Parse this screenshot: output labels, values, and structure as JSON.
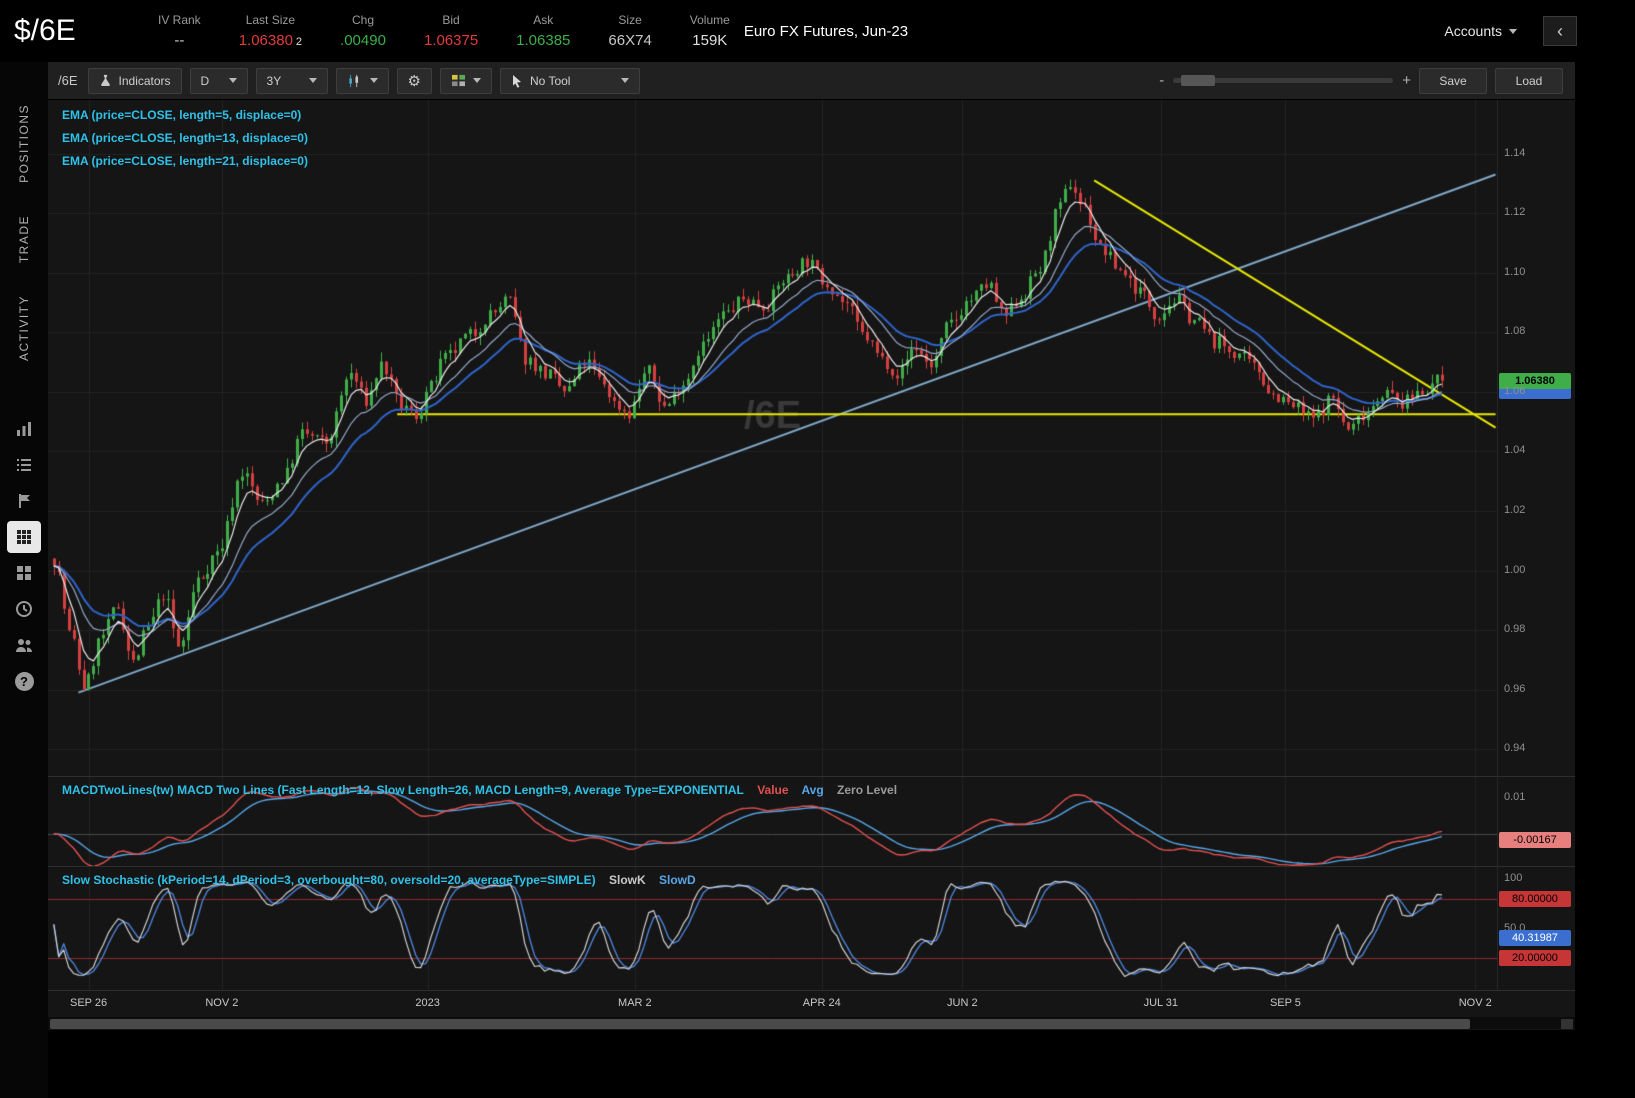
{
  "header": {
    "symbol": "$/6E",
    "instrument_title": "Euro FX Futures, Jun-23",
    "accounts_label": "Accounts",
    "fields": [
      {
        "label": "IV Rank",
        "value": "--",
        "color": "#cccccc"
      },
      {
        "label": "Last Size",
        "value": "1.06380",
        "suffix": "2",
        "color": "#e03c3c"
      },
      {
        "label": "Chg",
        "value": ".00490",
        "color": "#3dae4b"
      },
      {
        "label": "Bid",
        "value": "1.06375",
        "color": "#e03c3c"
      },
      {
        "label": "Ask",
        "value": "1.06385",
        "color": "#3dae4b"
      },
      {
        "label": "Size",
        "value": "66X74",
        "color": "#c8c8c8"
      },
      {
        "label": "Volume",
        "value": "159K",
        "color": "#e0e0e0"
      }
    ]
  },
  "icons": {
    "gear": "⚙",
    "collapse_left": "‹",
    "help": "?"
  },
  "sidebar": {
    "tabs": [
      {
        "id": "positions",
        "label": "POSITIONS"
      },
      {
        "id": "trade",
        "label": "TRADE"
      },
      {
        "id": "activity",
        "label": "ACTIVITY"
      }
    ],
    "gadget_icons": [
      "bar-chart-icon",
      "list-icon",
      "flag-icon",
      "grid-icon",
      "tiles-icon",
      "clock-icon",
      "people-icon",
      "question-icon"
    ]
  },
  "toolbar": {
    "symbol_label": "/6E",
    "indicators_label": "Indicators",
    "timeframe_value": "D",
    "range_value": "3Y",
    "tool_value": "No Tool",
    "zoom_minus": "-",
    "zoom_plus": "+",
    "save_label": "Save",
    "load_label": "Load"
  },
  "main_panel": {
    "legend": [
      "EMA (price=CLOSE, length=5, displace=0)",
      "EMA (price=CLOSE, length=13, displace=0)",
      "EMA (price=CLOSE, length=21, displace=0)"
    ],
    "watermark": "/6E",
    "axis_ticks": [
      "1.14",
      "1.12",
      "1.10",
      "1.08",
      "1.06",
      "1.04",
      "1.02",
      "1.00",
      "0.98",
      "0.96",
      "0.94"
    ],
    "last_price_label": "1.06380"
  },
  "macd_panel": {
    "legend_main": "MACDTwoLines(tw) MACD Two Lines (Fast Length=12, Slow Length=26, MACD Length=9, Average Type=EXPONENTIAL",
    "legend_value": "Value",
    "legend_avg": "Avg",
    "legend_zero": "Zero Level",
    "axis_tick": "0.01",
    "value_label": "-0.00167"
  },
  "stoch_panel": {
    "legend_main": "Slow Stochastic (kPeriod=14, dPeriod=3, overbought=80, oversold=20, averageType=SIMPLE)",
    "legend_slowk": "SlowK",
    "legend_slowd": "SlowD",
    "axis_ticks": [
      {
        "label": "100",
        "value": 100,
        "style": "plain"
      },
      {
        "label": "80.00000",
        "value": 80,
        "style": "red"
      },
      {
        "label": "50.0",
        "value": 50,
        "style": "plain"
      },
      {
        "label": "40.31987",
        "value": 40.31987,
        "style": "blue"
      },
      {
        "label": "20.00000",
        "value": 20,
        "style": "red"
      }
    ]
  },
  "time_axis": {
    "ticks": [
      {
        "label": "SEP 26",
        "t": 0.028
      },
      {
        "label": "NOV 2",
        "t": 0.12
      },
      {
        "label": "2023",
        "t": 0.262
      },
      {
        "label": "MAR 2",
        "t": 0.405
      },
      {
        "label": "APR 24",
        "t": 0.534
      },
      {
        "label": "JUN 2",
        "t": 0.631
      },
      {
        "label": "JUL 31",
        "t": 0.768
      },
      {
        "label": "SEP 5",
        "t": 0.854
      },
      {
        "label": "NOV 2",
        "t": 0.985
      }
    ]
  },
  "chart_data": {
    "type": "candlestick",
    "symbol": "/6E",
    "title": "Euro FX Futures, Jun-23",
    "timeframe": "D",
    "range": "3Y",
    "last_price": 1.0638,
    "price_axis_range": [
      0.931,
      1.158
    ],
    "price_gridlines": [
      1.14,
      1.12,
      1.1,
      1.08,
      1.06,
      1.04,
      1.02,
      1.0,
      0.98,
      0.96,
      0.94
    ],
    "num_candles": 281,
    "seed": 7,
    "price_path_anchors": [
      [
        0.0,
        1.004
      ],
      [
        0.012,
        0.978
      ],
      [
        0.022,
        0.961
      ],
      [
        0.035,
        0.978
      ],
      [
        0.046,
        0.988
      ],
      [
        0.057,
        0.969
      ],
      [
        0.068,
        0.981
      ],
      [
        0.079,
        0.992
      ],
      [
        0.09,
        0.974
      ],
      [
        0.104,
        0.997
      ],
      [
        0.118,
        1.006
      ],
      [
        0.136,
        1.033
      ],
      [
        0.15,
        1.022
      ],
      [
        0.165,
        1.031
      ],
      [
        0.179,
        1.046
      ],
      [
        0.196,
        1.043
      ],
      [
        0.214,
        1.066
      ],
      [
        0.225,
        1.057
      ],
      [
        0.236,
        1.069
      ],
      [
        0.25,
        1.055
      ],
      [
        0.261,
        1.052
      ],
      [
        0.27,
        1.061
      ],
      [
        0.282,
        1.071
      ],
      [
        0.3,
        1.079
      ],
      [
        0.315,
        1.086
      ],
      [
        0.327,
        1.091
      ],
      [
        0.34,
        1.071
      ],
      [
        0.355,
        1.066
      ],
      [
        0.369,
        1.06
      ],
      [
        0.383,
        1.07
      ],
      [
        0.396,
        1.063
      ],
      [
        0.404,
        1.056
      ],
      [
        0.414,
        1.053
      ],
      [
        0.427,
        1.067
      ],
      [
        0.44,
        1.055
      ],
      [
        0.453,
        1.063
      ],
      [
        0.468,
        1.076
      ],
      [
        0.483,
        1.086
      ],
      [
        0.497,
        1.091
      ],
      [
        0.512,
        1.089
      ],
      [
        0.527,
        1.098
      ],
      [
        0.542,
        1.104
      ],
      [
        0.556,
        1.097
      ],
      [
        0.57,
        1.09
      ],
      [
        0.583,
        1.079
      ],
      [
        0.597,
        1.071
      ],
      [
        0.608,
        1.066
      ],
      [
        0.62,
        1.075
      ],
      [
        0.632,
        1.069
      ],
      [
        0.646,
        1.083
      ],
      [
        0.66,
        1.091
      ],
      [
        0.673,
        1.096
      ],
      [
        0.684,
        1.085
      ],
      [
        0.697,
        1.092
      ],
      [
        0.71,
        1.101
      ],
      [
        0.724,
        1.121
      ],
      [
        0.732,
        1.13
      ],
      [
        0.742,
        1.122
      ],
      [
        0.754,
        1.108
      ],
      [
        0.768,
        1.101
      ],
      [
        0.782,
        1.094
      ],
      [
        0.795,
        1.086
      ],
      [
        0.808,
        1.091
      ],
      [
        0.822,
        1.084
      ],
      [
        0.836,
        1.077
      ],
      [
        0.851,
        1.073
      ],
      [
        0.865,
        1.068
      ],
      [
        0.879,
        1.059
      ],
      [
        0.893,
        1.055
      ],
      [
        0.907,
        1.051
      ],
      [
        0.921,
        1.058
      ],
      [
        0.932,
        1.047
      ],
      [
        0.944,
        1.053
      ],
      [
        0.958,
        1.06
      ],
      [
        0.972,
        1.056
      ],
      [
        0.986,
        1.061
      ],
      [
        1.0,
        1.0638
      ]
    ],
    "overlays": [
      {
        "name": "EMA5",
        "length": 5,
        "color": "#e8e8e8"
      },
      {
        "name": "EMA13",
        "length": 13,
        "color": "#93a7c8"
      },
      {
        "name": "EMA21",
        "length": 21,
        "color": "#2e64c8"
      }
    ],
    "drawings": [
      {
        "type": "trendline",
        "color": "#7fa8c9",
        "x1": 0.021,
        "p1": 0.959,
        "x2": 0.999,
        "p2": 1.133
      },
      {
        "type": "horizontal-line",
        "color": "#e8e800",
        "x1": 0.241,
        "p1": 1.0525,
        "x2": 0.999,
        "p2": 1.0525
      },
      {
        "type": "trendline",
        "color": "#e8e800",
        "x1": 0.722,
        "p1": 1.131,
        "x2": 0.999,
        "p2": 1.048
      }
    ],
    "macd": {
      "fast": 12,
      "slow": 26,
      "signal": 9,
      "range": [
        -0.009,
        0.016
      ],
      "zero_level": 0,
      "current_value": -0.00167,
      "value_color": "#e05050",
      "avg_color": "#58a6e8"
    },
    "stochastic": {
      "k_period": 14,
      "d_period": 3,
      "overbought": 80,
      "oversold": 20,
      "current_slowd": 40.31987,
      "slowk_color": "#d0d0d0",
      "slowd_color": "#4a82d8",
      "band_color": "#8c2a2a"
    },
    "candle_up_color": "#3fae49",
    "candle_down_color": "#d43f3f",
    "background": "#151515",
    "grid_color": "#232323"
  }
}
